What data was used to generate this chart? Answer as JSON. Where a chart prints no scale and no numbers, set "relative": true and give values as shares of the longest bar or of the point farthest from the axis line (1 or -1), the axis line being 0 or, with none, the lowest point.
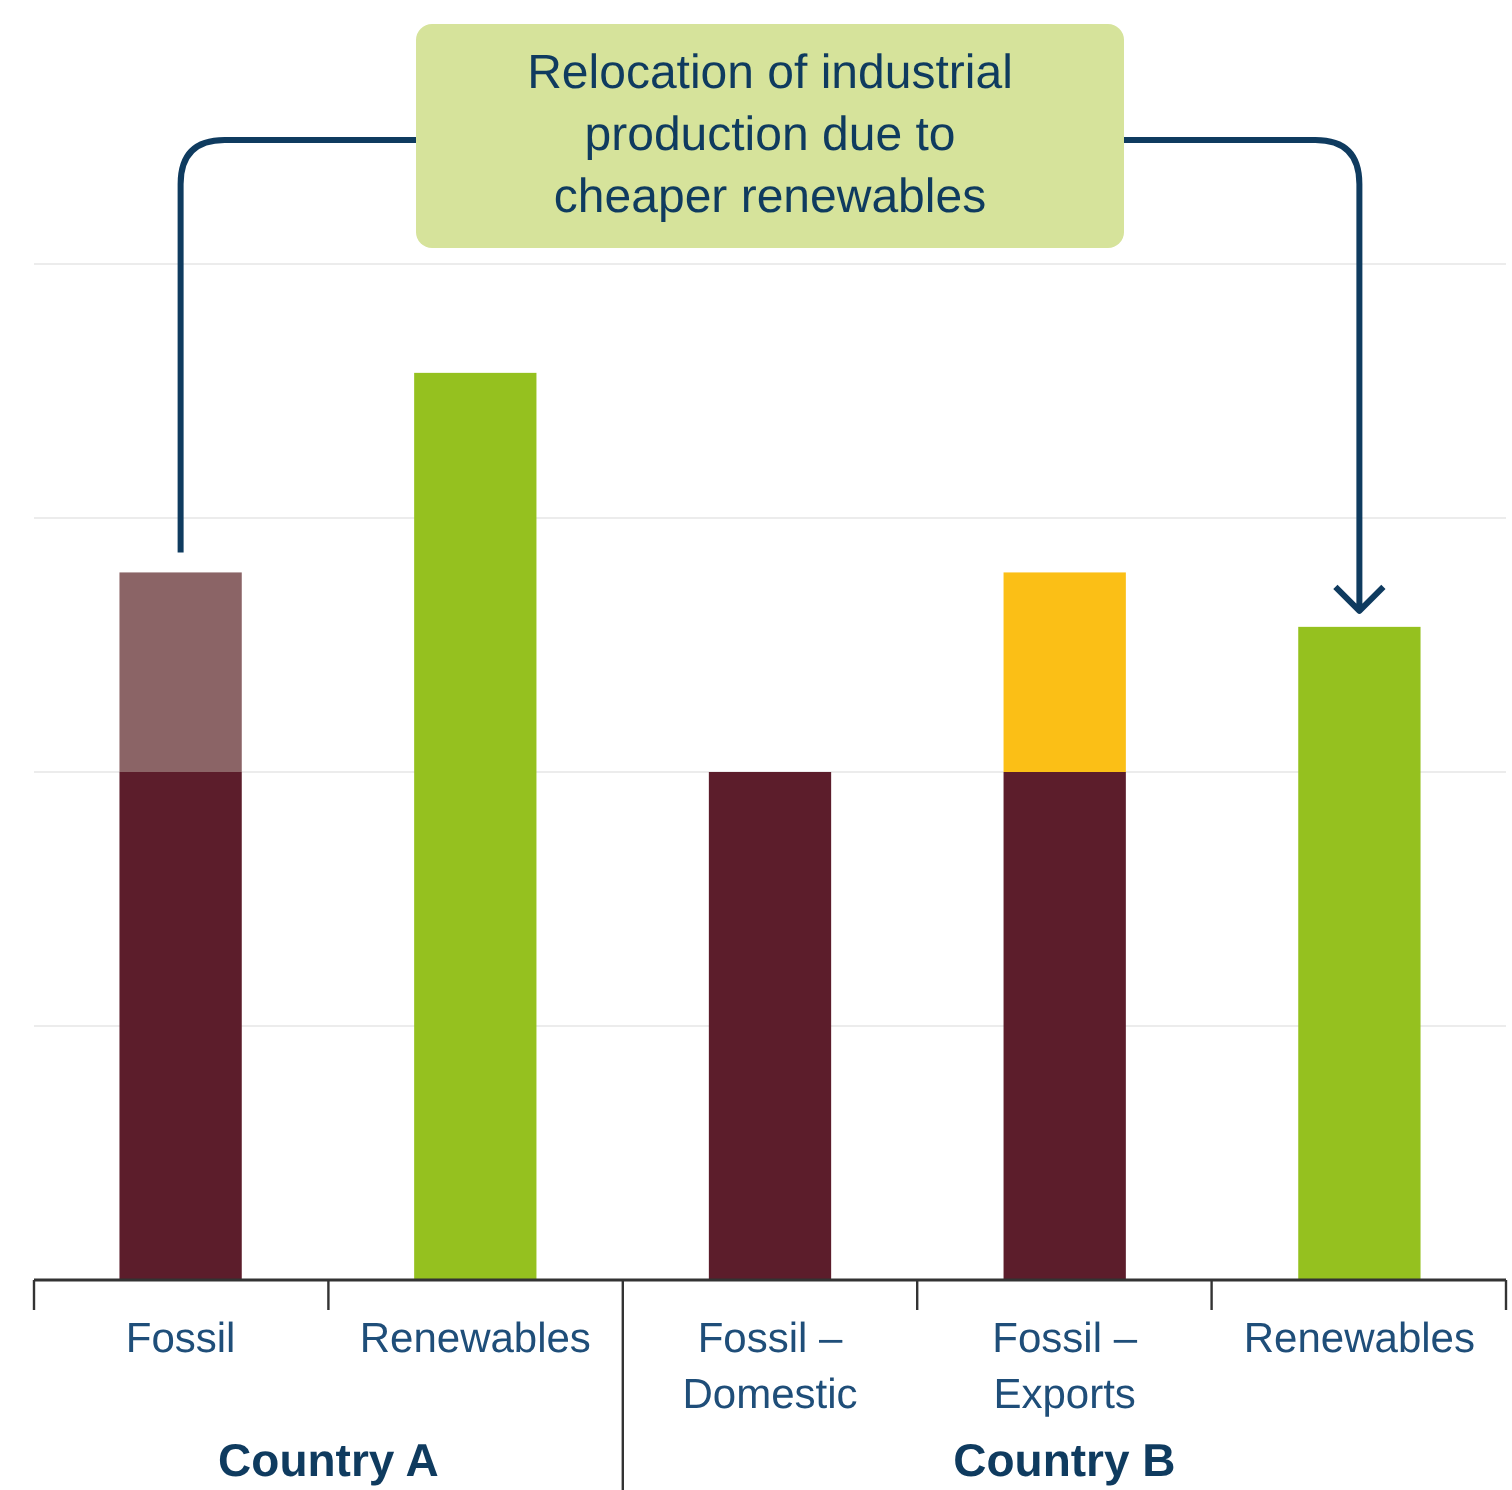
{
  "chart_data": {
    "type": "bar",
    "relative": true,
    "stacked": true,
    "grid": "y",
    "categories": [
      "Fossil",
      "Renewables",
      "Fossil – Domestic",
      "Fossil – Exports",
      "Renewables"
    ],
    "series": [
      {
        "color": "#5c1d2b",
        "values": [
          0.56,
          null,
          0.56,
          0.56,
          null
        ]
      },
      {
        "color": "#8b6466",
        "values": [
          0.22,
          null,
          null,
          null,
          null
        ]
      },
      {
        "color": "#fbbf16",
        "values": [
          null,
          null,
          null,
          0.22,
          null
        ]
      },
      {
        "color": "#95c11f",
        "values": [
          null,
          1,
          null,
          null,
          0.72
        ]
      }
    ],
    "annotations": [
      "Relocation of industrial production due to cheaper renewables",
      "Country A",
      "Country B"
    ]
  }
}
